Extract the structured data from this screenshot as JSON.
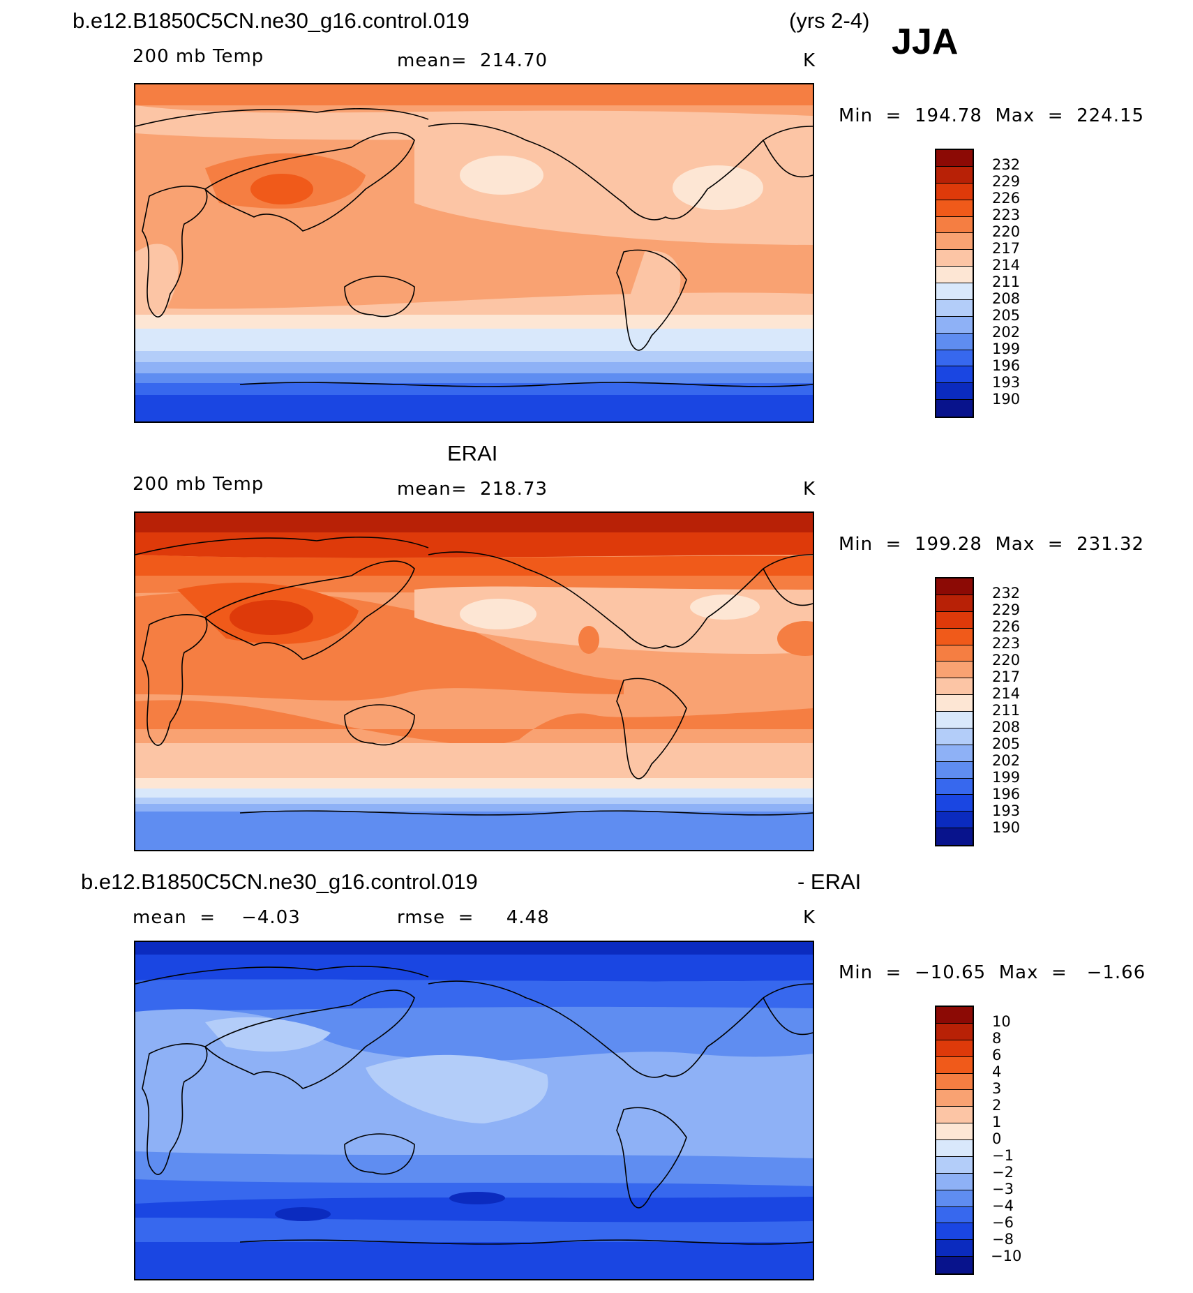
{
  "header": {
    "case_name": "b.e12.B1850C5CN.ne30_g16.control.019",
    "years": "(yrs 2-4)",
    "season": "JJA"
  },
  "panels": [
    {
      "id": "model",
      "title": "",
      "var_label": "200 mb Temp",
      "stat_label": "mean=  214.70",
      "unit": "K",
      "minmax": "Min  =  194.78  Max  =  224.15",
      "colorbar_labels": [
        "232",
        "229",
        "226",
        "223",
        "220",
        "217",
        "214",
        "211",
        "208",
        "205",
        "202",
        "199",
        "196",
        "193",
        "190"
      ],
      "palette": "abs"
    },
    {
      "id": "obs",
      "title": "ERAI",
      "var_label": "200 mb Temp",
      "stat_label": "mean=  218.73",
      "unit": "K",
      "minmax": "Min  =  199.28  Max  =  231.32",
      "colorbar_labels": [
        "232",
        "229",
        "226",
        "223",
        "220",
        "217",
        "214",
        "211",
        "208",
        "205",
        "202",
        "199",
        "196",
        "193",
        "190"
      ],
      "palette": "abs"
    },
    {
      "id": "diff",
      "title_left": "b.e12.B1850C5CN.ne30_g16.control.019",
      "title_right": "- ERAI",
      "var_label": "mean  =    −4.03",
      "stat_label": "rmse  =     4.48",
      "unit": "K",
      "minmax": "Min  =  −10.65  Max  =   −1.66",
      "colorbar_labels": [
        "10",
        "8",
        "6",
        "4",
        "3",
        "2",
        "1",
        "0",
        "−1",
        "−2",
        "−3",
        "−4",
        "−6",
        "−8",
        "−10"
      ],
      "palette": "diff"
    }
  ],
  "colors": {
    "abs": [
      "#8c0a05",
      "#b82106",
      "#de3a0a",
      "#f05a1a",
      "#f57e42",
      "#f9a272",
      "#fcc5a5",
      "#fde6d4",
      "#d9e8fb",
      "#b3cdf9",
      "#8eb1f6",
      "#5f8df1",
      "#3768ee",
      "#1a46e2",
      "#0b2bbf",
      "#08138c"
    ],
    "diff": [
      "#8c0a05",
      "#b82106",
      "#de3a0a",
      "#f05a1a",
      "#f57e42",
      "#f9a272",
      "#fcc5a5",
      "#fde6d4",
      "#d9e8fb",
      "#b3cdf9",
      "#8eb1f6",
      "#5f8df1",
      "#3768ee",
      "#1a46e2",
      "#0b2bbf",
      "#08138c"
    ]
  }
}
